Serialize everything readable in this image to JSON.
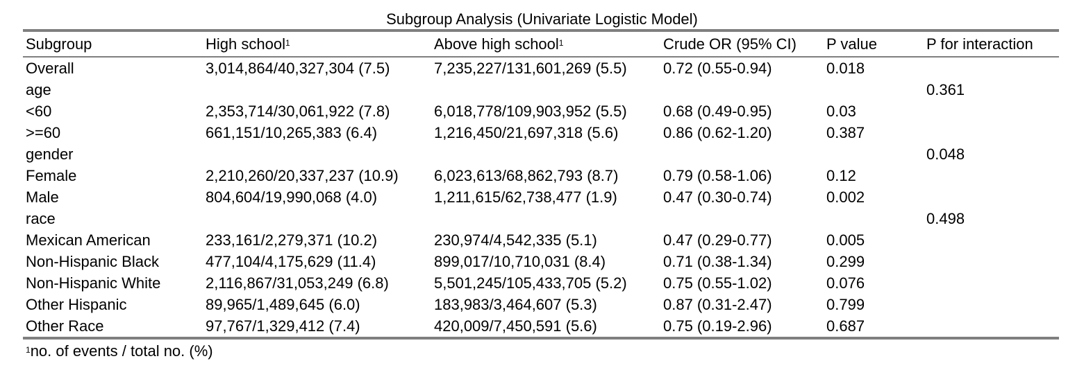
{
  "title": "Subgroup Analysis (Univariate Logistic Model)",
  "footnote_marker": "1",
  "headers": {
    "subgroup": "Subgroup",
    "high_school": "High school",
    "above_high_school": "Above high school",
    "crude_or": "Crude OR (95% CI)",
    "p_value": "P value",
    "p_interaction": "P for interaction"
  },
  "rows": [
    {
      "subgroup": "Overall",
      "high_school": "3,014,864/40,327,304 (7.5)",
      "above_high_school": "7,235,227/131,601,269 (5.5)",
      "crude_or": "0.72 (0.55-0.94)",
      "p_value": "0.018",
      "p_interaction": ""
    },
    {
      "subgroup": "age",
      "high_school": "",
      "above_high_school": "",
      "crude_or": "",
      "p_value": "",
      "p_interaction": "0.361"
    },
    {
      "subgroup": "<60",
      "high_school": "2,353,714/30,061,922 (7.8)",
      "above_high_school": "6,018,778/109,903,952 (5.5)",
      "crude_or": "0.68 (0.49-0.95)",
      "p_value": "0.03",
      "p_interaction": ""
    },
    {
      "subgroup": ">=60",
      "high_school": "661,151/10,265,383 (6.4)",
      "above_high_school": "1,216,450/21,697,318 (5.6)",
      "crude_or": "0.86 (0.62-1.20)",
      "p_value": "0.387",
      "p_interaction": ""
    },
    {
      "subgroup": "gender",
      "high_school": "",
      "above_high_school": "",
      "crude_or": "",
      "p_value": "",
      "p_interaction": "0.048"
    },
    {
      "subgroup": "Female",
      "high_school": "2,210,260/20,337,237 (10.9)",
      "above_high_school": "6,023,613/68,862,793 (8.7)",
      "crude_or": "0.79 (0.58-1.06)",
      "p_value": "0.12",
      "p_interaction": ""
    },
    {
      "subgroup": "Male",
      "high_school": "804,604/19,990,068 (4.0)",
      "above_high_school": "1,211,615/62,738,477 (1.9)",
      "crude_or": "0.47 (0.30-0.74)",
      "p_value": "0.002",
      "p_interaction": ""
    },
    {
      "subgroup": "race",
      "high_school": "",
      "above_high_school": "",
      "crude_or": "",
      "p_value": "",
      "p_interaction": "0.498"
    },
    {
      "subgroup": "Mexican American",
      "high_school": "233,161/2,279,371 (10.2)",
      "above_high_school": "230,974/4,542,335 (5.1)",
      "crude_or": "0.47 (0.29-0.77)",
      "p_value": "0.005",
      "p_interaction": ""
    },
    {
      "subgroup": "Non-Hispanic Black",
      "high_school": "477,104/4,175,629 (11.4)",
      "above_high_school": "899,017/10,710,031 (8.4)",
      "crude_or": "0.71 (0.38-1.34)",
      "p_value": "0.299",
      "p_interaction": ""
    },
    {
      "subgroup": "Non-Hispanic White",
      "high_school": "2,116,867/31,053,249 (6.8)",
      "above_high_school": "5,501,245/105,433,705 (5.2)",
      "crude_or": "0.75 (0.55-1.02)",
      "p_value": "0.076",
      "p_interaction": ""
    },
    {
      "subgroup": "Other Hispanic",
      "high_school": "89,965/1,489,645 (6.0)",
      "above_high_school": "183,983/3,464,607 (5.3)",
      "crude_or": "0.87 (0.31-2.47)",
      "p_value": "0.799",
      "p_interaction": ""
    },
    {
      "subgroup": "Other Race",
      "high_school": "97,767/1,329,412 (7.4)",
      "above_high_school": "420,009/7,450,591 (5.6)",
      "crude_or": "0.75 (0.19-2.96)",
      "p_value": "0.687",
      "p_interaction": ""
    }
  ],
  "footnote": "no. of events / total no. (%)",
  "colors": {
    "rule": "#7f7f7f",
    "text": "#000000",
    "background": "#ffffff"
  }
}
